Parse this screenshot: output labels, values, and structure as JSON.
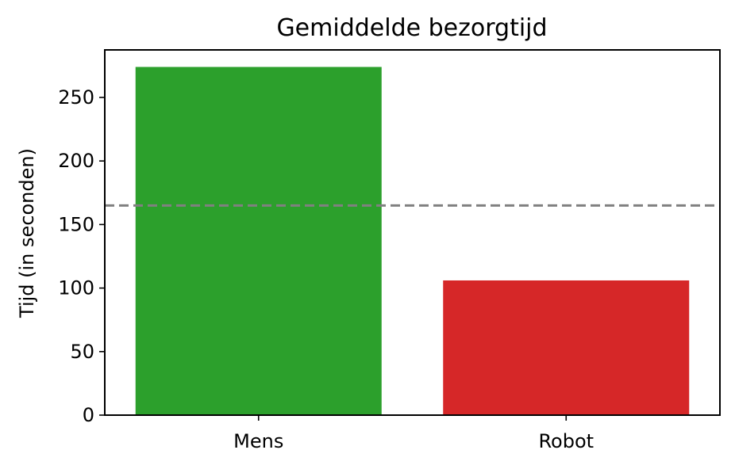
{
  "chart_data": {
    "type": "bar",
    "title": "Gemiddelde bezorgtijd",
    "xlabel": "",
    "ylabel": "Tijd (in seconden)",
    "categories": [
      "Mens",
      "Robot"
    ],
    "values": [
      274,
      106
    ],
    "colors": [
      "#2ca02c",
      "#d62728"
    ],
    "ylim": [
      0,
      287.4
    ],
    "yticks": [
      0,
      50,
      100,
      150,
      200,
      250
    ],
    "reference_line": {
      "value": 165,
      "style": "dashed",
      "color": "#808080"
    },
    "grid": false,
    "legend": "none"
  }
}
